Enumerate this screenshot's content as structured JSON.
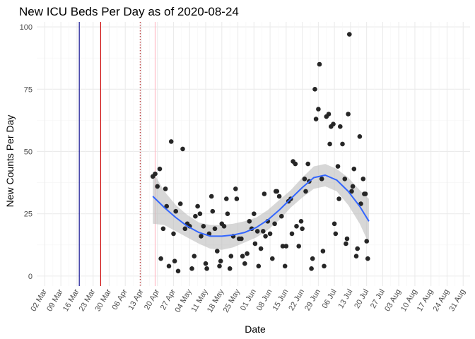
{
  "chart_data": {
    "type": "scatter",
    "title": "New ICU Beds Per Day as of 2020-08-24",
    "xlabel": "Date",
    "ylabel": "New Counts Per Day",
    "xlim_days": [
      -3.5,
      185
    ],
    "ylim": [
      -4,
      102
    ],
    "x_origin": "2020-03-02",
    "x_ticks": [
      {
        "day": 0,
        "label": "02 Mar"
      },
      {
        "day": 7,
        "label": "09 Mar"
      },
      {
        "day": 14,
        "label": "16 Mar"
      },
      {
        "day": 21,
        "label": "23 Mar"
      },
      {
        "day": 28,
        "label": "30 Mar"
      },
      {
        "day": 35,
        "label": "06 Apr"
      },
      {
        "day": 42,
        "label": "13 Apr"
      },
      {
        "day": 49,
        "label": "20 Apr"
      },
      {
        "day": 56,
        "label": "27 Apr"
      },
      {
        "day": 63,
        "label": "04 May"
      },
      {
        "day": 70,
        "label": "11 May"
      },
      {
        "day": 77,
        "label": "18 May"
      },
      {
        "day": 84,
        "label": "25 May"
      },
      {
        "day": 91,
        "label": "01 Jun"
      },
      {
        "day": 98,
        "label": "08 Jun"
      },
      {
        "day": 105,
        "label": "15 Jun"
      },
      {
        "day": 112,
        "label": "22 Jun"
      },
      {
        "day": 119,
        "label": "29 Jun"
      },
      {
        "day": 126,
        "label": "06 Jul"
      },
      {
        "day": 133,
        "label": "13 Jul"
      },
      {
        "day": 140,
        "label": "20 Jul"
      },
      {
        "day": 147,
        "label": "27 Jul"
      },
      {
        "day": 154,
        "label": "03 Aug"
      },
      {
        "day": 161,
        "label": "10 Aug"
      },
      {
        "day": 168,
        "label": "17 Aug"
      },
      {
        "day": 175,
        "label": "24 Aug"
      },
      {
        "day": 182,
        "label": "31 Aug"
      }
    ],
    "y_ticks": [
      0,
      25,
      50,
      75,
      100
    ],
    "vlines": [
      {
        "name": "navy",
        "day": 15,
        "color": "#00008b",
        "style": "solid"
      },
      {
        "name": "red",
        "day": 24.3,
        "color": "#cc0000",
        "style": "solid"
      },
      {
        "name": "brown-dotted",
        "day": 41.5,
        "color": "#b22222",
        "style": "dotted"
      },
      {
        "name": "pink",
        "day": 48,
        "color": "#ffb6c1",
        "style": "solid"
      }
    ],
    "points": [
      [
        47,
        40
      ],
      [
        48,
        41
      ],
      [
        49,
        36
      ],
      [
        50,
        43
      ],
      [
        50.5,
        7
      ],
      [
        51.5,
        19
      ],
      [
        52.5,
        35
      ],
      [
        53,
        28
      ],
      [
        54,
        4
      ],
      [
        55,
        54
      ],
      [
        56,
        17
      ],
      [
        56.5,
        6
      ],
      [
        57,
        26
      ],
      [
        58,
        2
      ],
      [
        59,
        29
      ],
      [
        60,
        51
      ],
      [
        61,
        19
      ],
      [
        62,
        21
      ],
      [
        63,
        20
      ],
      [
        64,
        3
      ],
      [
        65,
        8
      ],
      [
        65.5,
        24
      ],
      [
        66.5,
        28
      ],
      [
        67.5,
        25
      ],
      [
        68,
        16
      ],
      [
        69,
        20
      ],
      [
        70,
        5
      ],
      [
        70.5,
        3
      ],
      [
        71.5,
        17
      ],
      [
        72.5,
        32
      ],
      [
        73,
        26
      ],
      [
        74,
        19
      ],
      [
        75,
        10
      ],
      [
        76,
        4
      ],
      [
        76.5,
        6
      ],
      [
        77,
        21
      ],
      [
        78,
        20
      ],
      [
        79,
        31
      ],
      [
        79.5,
        25
      ],
      [
        80.5,
        3
      ],
      [
        81,
        8
      ],
      [
        82,
        16
      ],
      [
        83,
        35
      ],
      [
        83.5,
        31
      ],
      [
        84.5,
        15
      ],
      [
        85.5,
        15
      ],
      [
        86,
        8
      ],
      [
        87,
        5
      ],
      [
        88,
        9
      ],
      [
        89,
        22
      ],
      [
        90,
        19
      ],
      [
        91,
        25
      ],
      [
        91.5,
        13
      ],
      [
        92.5,
        18
      ],
      [
        93,
        4
      ],
      [
        94,
        11
      ],
      [
        95,
        18
      ],
      [
        95.5,
        33
      ],
      [
        96,
        16
      ],
      [
        97,
        22
      ],
      [
        98,
        17
      ],
      [
        99,
        7
      ],
      [
        100,
        21
      ],
      [
        100.5,
        34
      ],
      [
        101,
        34
      ],
      [
        102,
        32
      ],
      [
        103,
        24
      ],
      [
        103.5,
        12
      ],
      [
        104.5,
        4
      ],
      [
        105,
        12
      ],
      [
        106,
        30
      ],
      [
        107,
        31
      ],
      [
        107.5,
        17
      ],
      [
        108,
        46
      ],
      [
        109,
        45
      ],
      [
        109.5,
        20
      ],
      [
        110.5,
        12
      ],
      [
        111.5,
        22
      ],
      [
        112,
        19
      ],
      [
        113,
        39
      ],
      [
        113.5,
        34
      ],
      [
        114.5,
        45
      ],
      [
        115,
        38
      ],
      [
        116,
        3
      ],
      [
        116.5,
        7
      ],
      [
        117.5,
        75
      ],
      [
        118,
        63
      ],
      [
        119,
        67
      ],
      [
        119.5,
        85
      ],
      [
        120.5,
        39
      ],
      [
        121,
        10
      ],
      [
        121.5,
        4
      ],
      [
        122.5,
        64
      ],
      [
        123.5,
        65
      ],
      [
        124,
        53
      ],
      [
        124.5,
        60
      ],
      [
        125.5,
        61
      ],
      [
        126,
        21
      ],
      [
        126.5,
        17
      ],
      [
        127.5,
        44
      ],
      [
        128,
        31
      ],
      [
        128.5,
        60
      ],
      [
        129.5,
        53
      ],
      [
        130.5,
        39
      ],
      [
        131,
        13
      ],
      [
        131.5,
        15
      ],
      [
        132,
        65
      ],
      [
        132.5,
        97
      ],
      [
        133.5,
        34
      ],
      [
        134,
        36
      ],
      [
        134.5,
        43
      ],
      [
        135.5,
        8
      ],
      [
        136,
        11
      ],
      [
        137,
        56
      ],
      [
        137.5,
        29
      ],
      [
        138.5,
        39
      ],
      [
        139,
        33
      ],
      [
        139.5,
        33
      ],
      [
        140,
        14
      ],
      [
        140.5,
        7
      ]
    ],
    "smooth": {
      "day": [
        47,
        52,
        57,
        62,
        67,
        72,
        77,
        82,
        87,
        92,
        97,
        102,
        107,
        112,
        117,
        122,
        127,
        132,
        137,
        141
      ],
      "fit": [
        32,
        27.5,
        23.5,
        20,
        17.5,
        16,
        16,
        16.5,
        17.5,
        19.5,
        22.5,
        26.5,
        31,
        35.5,
        39.5,
        40.5,
        38.5,
        34,
        28,
        22
      ],
      "lower": [
        21,
        20.5,
        18,
        15.5,
        13,
        11,
        10.5,
        11.5,
        13.5,
        15.5,
        18.5,
        22.5,
        27.5,
        31.5,
        35,
        36,
        34,
        28.5,
        21,
        13
      ],
      "upper": [
        42,
        34,
        28.5,
        24.5,
        21.5,
        20.5,
        20.5,
        21,
        22,
        23.5,
        26.5,
        30.5,
        34.5,
        39.5,
        44,
        45,
        43,
        39.5,
        34.5,
        31
      ]
    },
    "colors": {
      "points": "#262626",
      "smooth_line": "#3366ff",
      "ribbon": "#bebebe"
    }
  }
}
